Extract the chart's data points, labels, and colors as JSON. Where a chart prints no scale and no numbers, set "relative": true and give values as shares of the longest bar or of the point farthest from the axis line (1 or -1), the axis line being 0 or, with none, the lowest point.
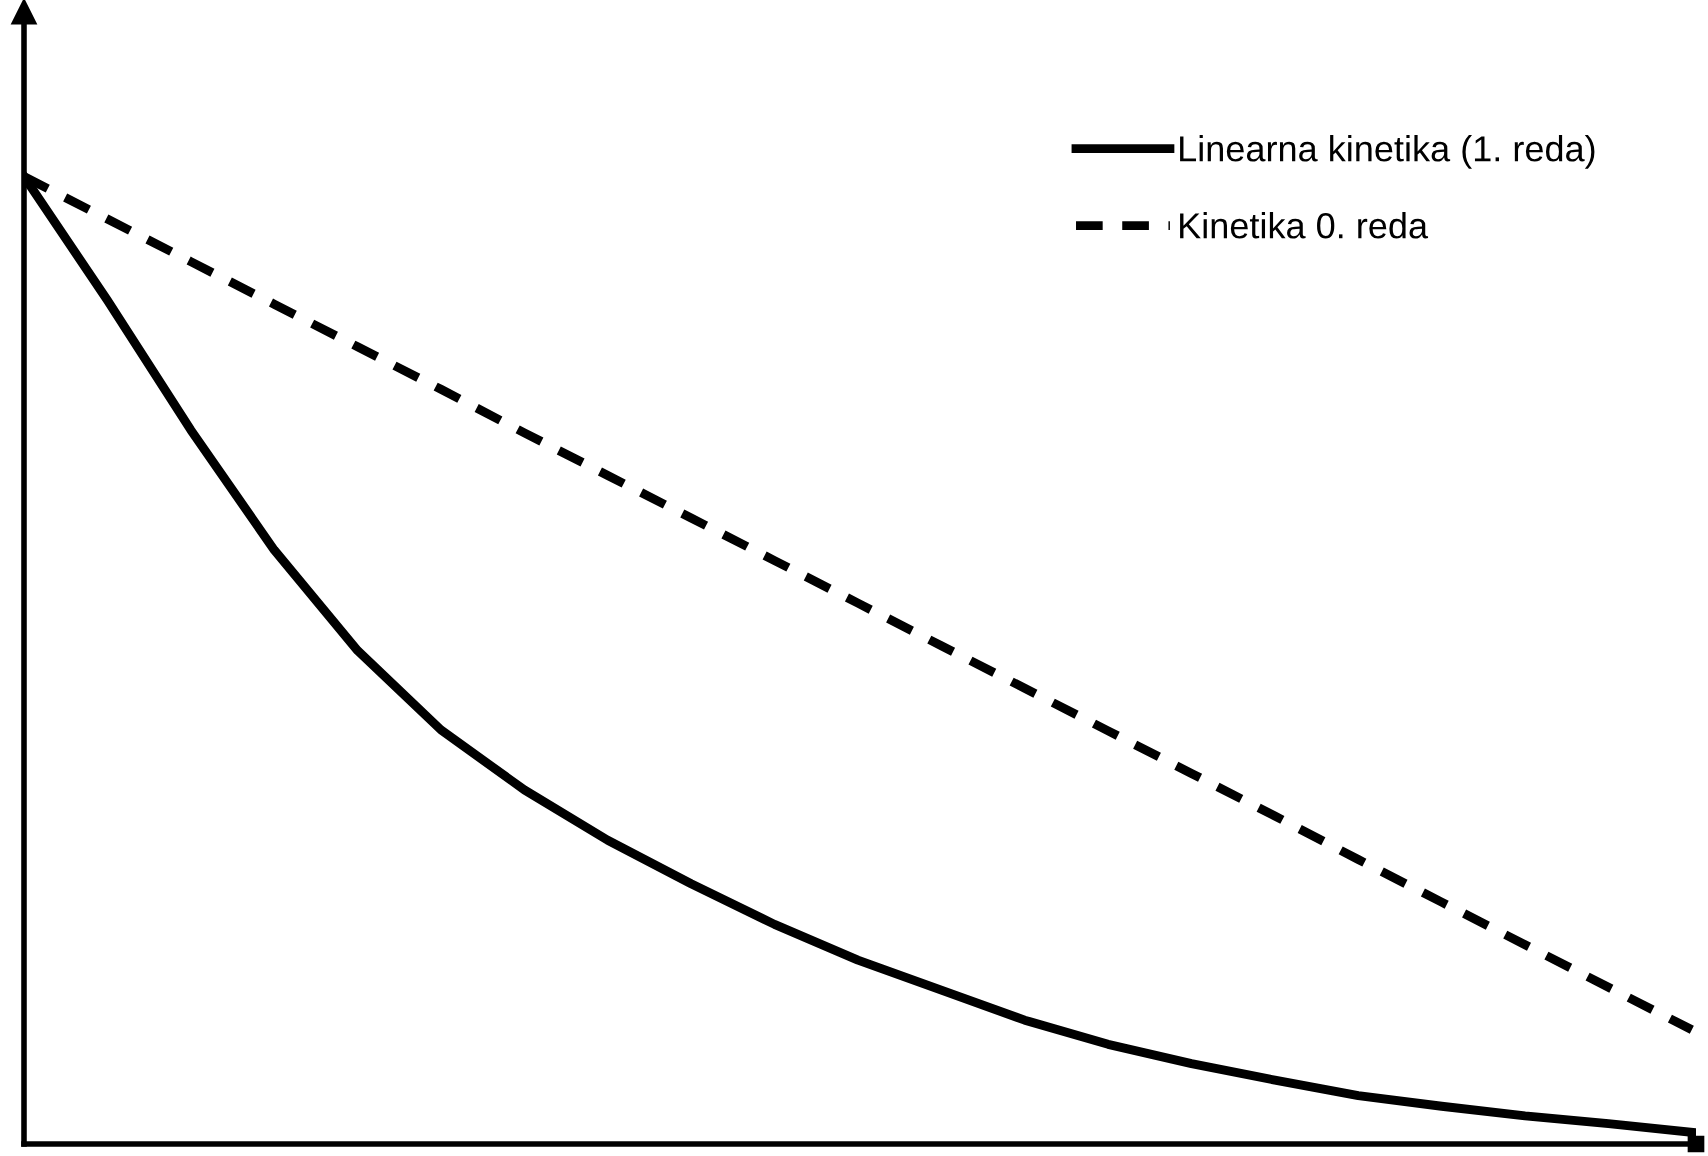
{
  "chart_data": {
    "type": "line",
    "relative": true,
    "legend": "top right",
    "grid": false,
    "marker": "none",
    "categories": [
      null,
      null,
      null,
      null,
      null,
      null,
      null,
      null,
      null,
      null,
      null,
      null,
      null,
      null,
      null,
      null,
      null,
      null,
      null,
      null,
      null
    ],
    "series": [
      {
        "name": "Linearna kinetika (1. reda)",
        "color": "#000000",
        "line_style": "solid",
        "values": [
          1.0,
          0.872,
          0.738,
          0.614,
          0.51,
          0.428,
          0.366,
          0.314,
          0.269,
          0.227,
          0.19,
          0.159,
          0.128,
          0.103,
          0.083,
          0.066,
          0.05,
          0.039,
          0.029,
          0.021,
          0.012
        ]
      },
      {
        "name": "Kinetika 0. reda",
        "color": "#000000",
        "line_style": "dashed",
        "values": [
          1.0,
          0.956,
          0.912,
          0.868,
          0.824,
          0.78,
          0.735,
          0.691,
          0.647,
          0.603,
          0.559,
          0.515,
          0.471,
          0.427,
          0.383,
          0.339,
          0.294,
          0.25,
          0.206,
          0.162,
          0.118
        ]
      }
    ]
  }
}
